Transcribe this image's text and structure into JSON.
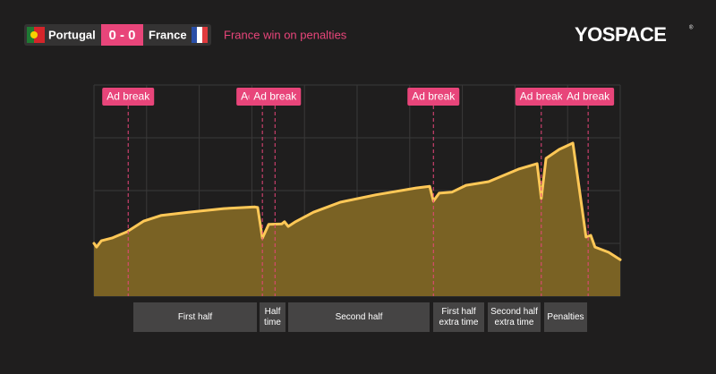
{
  "header": {
    "home": "Portugal",
    "score": "0 - 0",
    "away": "France",
    "result": "France win on penalties",
    "brand": "YOSPACE"
  },
  "chart_data": {
    "type": "area",
    "color": "#ffc857",
    "fill": "#7a6224",
    "x": [
      0,
      0.05,
      0.14,
      0.34,
      0.63,
      0.94,
      1.28,
      1.79,
      2.47,
      3.06,
      3.11,
      3.2,
      3.32,
      3.57,
      3.62,
      3.69,
      3.83,
      4.17,
      4.68,
      5.36,
      6.12,
      6.38,
      6.45,
      6.56,
      6.8,
      7.07,
      7.5,
      8.08,
      8.42,
      8.5,
      8.59,
      8.84,
      9.1,
      9.35,
      9.44,
      9.52,
      9.78,
      10
    ],
    "values": [
      1.0,
      0.93,
      1.05,
      1.1,
      1.22,
      1.42,
      1.53,
      1.59,
      1.66,
      1.69,
      1.68,
      1.1,
      1.36,
      1.37,
      1.41,
      1.32,
      1.41,
      1.59,
      1.78,
      1.92,
      2.05,
      2.08,
      1.8,
      1.95,
      1.97,
      2.1,
      2.17,
      2.41,
      2.51,
      1.85,
      2.61,
      2.78,
      2.9,
      1.12,
      1.15,
      0.93,
      0.83,
      0.69
    ],
    "xlim": [
      0,
      10
    ],
    "xticks": [
      0,
      1,
      2,
      3,
      4,
      5,
      6,
      7,
      8,
      9,
      10
    ],
    "ylim": [
      0,
      4
    ],
    "yticks": [
      0,
      1,
      2,
      3,
      4
    ],
    "grid": true,
    "annotations": [
      {
        "x": 0.65,
        "label": "Ad break"
      },
      {
        "x": 3.2,
        "label": "Ad break"
      },
      {
        "x": 3.44,
        "label": "Ad break"
      },
      {
        "x": 6.45,
        "label": "Ad break"
      },
      {
        "x": 8.5,
        "label": "Ad break"
      },
      {
        "x": 9.39,
        "label": "Ad break"
      }
    ],
    "phases": [
      [
        "First half"
      ],
      [
        "Half",
        "time"
      ],
      [
        "Second half"
      ],
      [
        "First half",
        "extra time"
      ],
      [
        "Second half",
        "extra time"
      ],
      [
        "Penalties"
      ]
    ]
  }
}
